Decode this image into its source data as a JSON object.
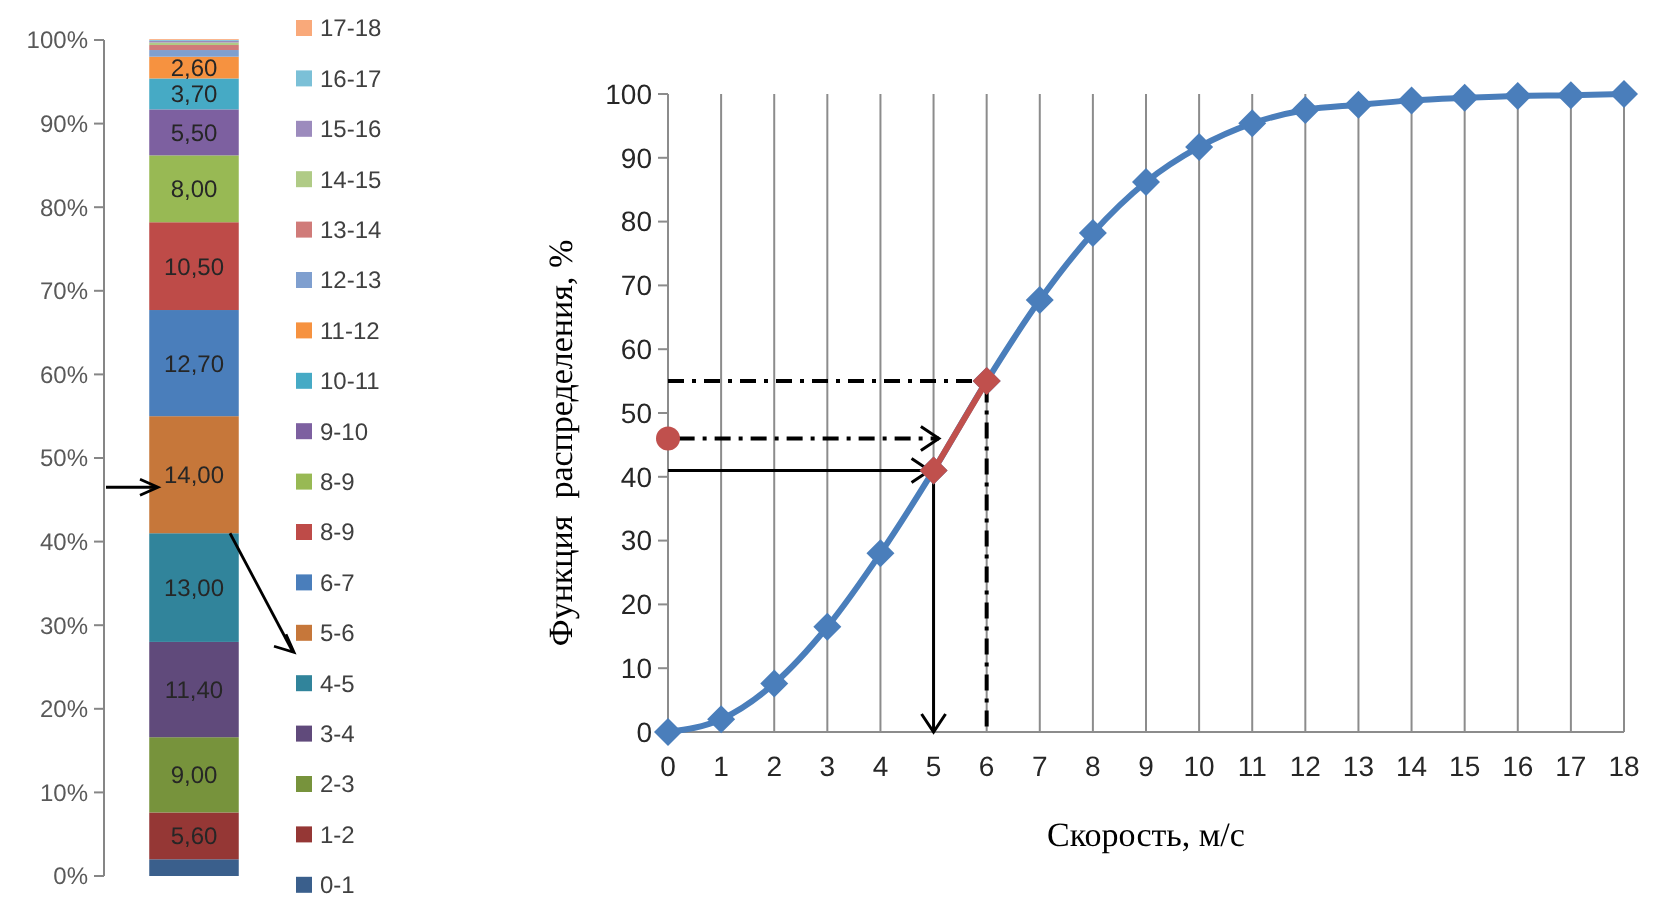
{
  "chart_data": [
    {
      "type": "bar",
      "stacked": true,
      "categories": [
        null
      ],
      "ylim": [
        0,
        100
      ],
      "yticks": [
        {
          "value": 0,
          "label": "0%"
        },
        {
          "value": 10,
          "label": "10%"
        },
        {
          "value": 20,
          "label": "20%"
        },
        {
          "value": 30,
          "label": "30%"
        },
        {
          "value": 40,
          "label": "40%"
        },
        {
          "value": 50,
          "label": "50%"
        },
        {
          "value": 60,
          "label": "60%"
        },
        {
          "value": 70,
          "label": "70%"
        },
        {
          "value": 80,
          "label": "80%"
        },
        {
          "value": 90,
          "label": "90%"
        },
        {
          "value": 100,
          "label": "100%"
        }
      ],
      "tick_labels": "y",
      "legend": "right",
      "series": [
        {
          "name": "0-1",
          "color": "#3a5f8c",
          "values": [
            2.0
          ],
          "value_labels": [
            null
          ]
        },
        {
          "name": "1-2",
          "color": "#953735",
          "values": [
            5.6
          ],
          "value_labels": [
            "5,60"
          ]
        },
        {
          "name": "2-3",
          "color": "#77933c",
          "values": [
            9.0
          ],
          "value_labels": [
            "9,00"
          ]
        },
        {
          "name": "3-4",
          "color": "#604a7b",
          "values": [
            11.4
          ],
          "value_labels": [
            "11,40"
          ]
        },
        {
          "name": "4-5",
          "color": "#31849b",
          "values": [
            13.0
          ],
          "value_labels": [
            "13,00"
          ]
        },
        {
          "name": "5-6",
          "color": "#c6773a",
          "values": [
            14.0
          ],
          "value_labels": [
            "14,00"
          ]
        },
        {
          "name": "6-7",
          "color": "#4a7ebb",
          "values": [
            12.7
          ],
          "value_labels": [
            "12,70"
          ]
        },
        {
          "name": "8-9",
          "color": "#be4b48",
          "values": [
            10.5
          ],
          "value_labels": [
            "10,50"
          ]
        },
        {
          "name": "8-9",
          "color": "#98b954",
          "values": [
            8.0
          ],
          "value_labels": [
            "8,00"
          ]
        },
        {
          "name": "9-10",
          "color": "#7d60a0",
          "values": [
            5.5
          ],
          "value_labels": [
            "5,50"
          ]
        },
        {
          "name": "10-11",
          "color": "#46aac5",
          "values": [
            3.7
          ],
          "value_labels": [
            "3,70"
          ]
        },
        {
          "name": "11-12",
          "color": "#f69240",
          "values": [
            2.6
          ],
          "value_labels": [
            "2,60"
          ]
        },
        {
          "name": "12-13",
          "color": "#7f9fcf",
          "values": [
            0.8
          ],
          "value_labels": [
            null
          ]
        },
        {
          "name": "13-14",
          "color": "#d07b79",
          "values": [
            0.6
          ],
          "value_labels": [
            null
          ]
        },
        {
          "name": "14-15",
          "color": "#b0cb86",
          "values": [
            0.3
          ],
          "value_labels": [
            null
          ]
        },
        {
          "name": "15-16",
          "color": "#9c8bbd",
          "values": [
            0.2
          ],
          "value_labels": [
            null
          ]
        },
        {
          "name": "16-17",
          "color": "#7bc0d7",
          "values": [
            0.1
          ],
          "value_labels": [
            null
          ]
        },
        {
          "name": "17-18",
          "color": "#f9a97a",
          "values": [
            0.1
          ],
          "value_labels": [
            null
          ]
        }
      ]
    },
    {
      "type": "line",
      "xlabel": "Скорость, м/с",
      "ylabel": "Функция  распределения, %",
      "xlim": [
        0,
        18
      ],
      "ylim": [
        0,
        100
      ],
      "xticks": [
        0,
        1,
        2,
        3,
        4,
        5,
        6,
        7,
        8,
        9,
        10,
        11,
        12,
        13,
        14,
        15,
        16,
        17,
        18
      ],
      "yticks": [
        0,
        10,
        20,
        30,
        40,
        50,
        60,
        70,
        80,
        90,
        100
      ],
      "grid": "x",
      "marker": "diamond",
      "series": [
        {
          "color": "#4a7ebb",
          "x": [
            0,
            1,
            2,
            3,
            4,
            5,
            6,
            7,
            8,
            9,
            10,
            11,
            12,
            13,
            14,
            15,
            16,
            17,
            18
          ],
          "values": [
            0,
            2,
            7.6,
            16.5,
            28,
            41,
            55,
            67.7,
            78.2,
            86.2,
            91.7,
            95.4,
            97.5,
            98.3,
            99,
            99.4,
            99.7,
            99.8,
            100
          ]
        },
        {
          "color": "#000000",
          "x": [
            0,
            6,
            6
          ],
          "values": [
            55,
            55,
            0
          ],
          "line_style": "dashed",
          "marker": "none"
        },
        {
          "color": "#c0504d",
          "x": [
            5,
            6
          ],
          "values": [
            41,
            55
          ]
        },
        {
          "type": "scatter",
          "marker": "circle",
          "color": "#c0504d",
          "x": [
            0
          ],
          "values": [
            46
          ]
        }
      ]
    }
  ]
}
